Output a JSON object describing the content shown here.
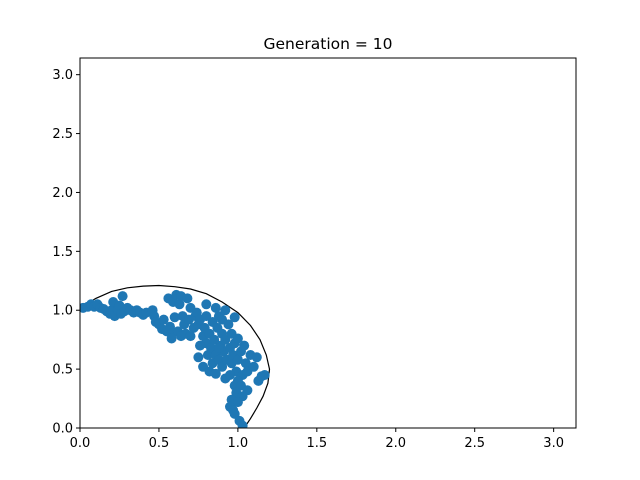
{
  "chart_data": {
    "type": "scatter",
    "title": "Generation = 10",
    "xlabel": "",
    "ylabel": "",
    "xlim": [
      0,
      3.1416
    ],
    "ylim": [
      0,
      3.1416
    ],
    "xticks": [
      0.0,
      0.5,
      1.0,
      1.5,
      2.0,
      2.5,
      3.0
    ],
    "yticks": [
      0.0,
      0.5,
      1.0,
      1.5,
      2.0,
      2.5,
      3.0
    ],
    "xtick_labels": [
      "0.0",
      "0.5",
      "1.0",
      "1.5",
      "2.0",
      "2.5",
      "3.0"
    ],
    "ytick_labels": [
      "0.0",
      "0.5",
      "1.0",
      "1.5",
      "2.0",
      "2.5",
      "3.0"
    ],
    "grid": false,
    "colors": {
      "points": "#1f77b4",
      "boundary": "#000000"
    },
    "boundary": {
      "type": "curve",
      "points": [
        [
          0.0,
          1.0
        ],
        [
          0.05,
          1.06
        ],
        [
          0.1,
          1.1
        ],
        [
          0.2,
          1.16
        ],
        [
          0.3,
          1.19
        ],
        [
          0.4,
          1.205
        ],
        [
          0.5,
          1.21
        ],
        [
          0.6,
          1.2
        ],
        [
          0.7,
          1.18
        ],
        [
          0.8,
          1.14
        ],
        [
          0.9,
          1.07
        ],
        [
          1.0,
          0.98
        ],
        [
          1.08,
          0.87
        ],
        [
          1.14,
          0.75
        ],
        [
          1.18,
          0.62
        ],
        [
          1.2,
          0.5
        ],
        [
          1.19,
          0.38
        ],
        [
          1.16,
          0.27
        ],
        [
          1.12,
          0.17
        ],
        [
          1.08,
          0.08
        ],
        [
          1.04,
          0.0
        ]
      ]
    },
    "points": [
      [
        0.02,
        1.02
      ],
      [
        0.05,
        1.03
      ],
      [
        0.07,
        1.05
      ],
      [
        0.09,
        1.03
      ],
      [
        0.11,
        1.05
      ],
      [
        0.13,
        1.02
      ],
      [
        0.15,
        1.01
      ],
      [
        0.17,
        0.99
      ],
      [
        0.19,
        0.97
      ],
      [
        0.2,
        1.0
      ],
      [
        0.21,
        1.07
      ],
      [
        0.22,
        0.95
      ],
      [
        0.24,
        1.0
      ],
      [
        0.25,
        1.04
      ],
      [
        0.26,
        0.97
      ],
      [
        0.28,
        0.99
      ],
      [
        0.3,
        1.02
      ],
      [
        0.27,
        1.12
      ],
      [
        0.32,
        1.0
      ],
      [
        0.34,
        0.98
      ],
      [
        0.36,
        1.0
      ],
      [
        0.38,
        0.98
      ],
      [
        0.4,
        0.96
      ],
      [
        0.42,
        0.98
      ],
      [
        0.46,
        1.0
      ],
      [
        0.47,
        0.95
      ],
      [
        0.48,
        0.9
      ],
      [
        0.5,
        0.88
      ],
      [
        0.52,
        0.84
      ],
      [
        0.53,
        0.92
      ],
      [
        0.55,
        0.82
      ],
      [
        0.56,
        1.1
      ],
      [
        0.57,
        0.86
      ],
      [
        0.58,
        0.8
      ],
      [
        0.59,
        1.07
      ],
      [
        0.6,
        0.94
      ],
      [
        0.61,
        1.13
      ],
      [
        0.62,
        0.82
      ],
      [
        0.63,
        1.05
      ],
      [
        0.64,
        1.12
      ],
      [
        0.65,
        0.95
      ],
      [
        0.66,
        0.88
      ],
      [
        0.67,
        0.8
      ],
      [
        0.68,
        1.1
      ],
      [
        0.69,
        0.92
      ],
      [
        0.7,
        1.02
      ],
      [
        0.72,
        0.85
      ],
      [
        0.73,
        0.95
      ],
      [
        0.74,
        0.98
      ],
      [
        0.75,
        0.88
      ],
      [
        0.76,
        0.92
      ],
      [
        0.78,
        0.78
      ],
      [
        0.79,
        0.85
      ],
      [
        0.8,
        0.72
      ],
      [
        0.8,
        0.95
      ],
      [
        0.81,
        0.62
      ],
      [
        0.82,
        0.8
      ],
      [
        0.83,
        0.68
      ],
      [
        0.84,
        0.9
      ],
      [
        0.84,
        0.55
      ],
      [
        0.85,
        0.75
      ],
      [
        0.86,
        0.62
      ],
      [
        0.87,
        0.85
      ],
      [
        0.88,
        0.58
      ],
      [
        0.88,
        0.95
      ],
      [
        0.89,
        0.7
      ],
      [
        0.9,
        0.8
      ],
      [
        0.9,
        0.52
      ],
      [
        0.91,
        0.65
      ],
      [
        0.92,
        0.75
      ],
      [
        0.93,
        0.58
      ],
      [
        0.94,
        0.88
      ],
      [
        0.95,
        0.68
      ],
      [
        0.96,
        0.55
      ],
      [
        0.97,
        0.62
      ],
      [
        0.98,
        0.72
      ],
      [
        0.99,
        0.48
      ],
      [
        1.0,
        0.58
      ],
      [
        1.02,
        0.65
      ],
      [
        1.03,
        0.45
      ],
      [
        1.04,
        0.7
      ],
      [
        1.05,
        0.55
      ],
      [
        1.06,
        0.48
      ],
      [
        1.08,
        0.62
      ],
      [
        1.1,
        0.52
      ],
      [
        1.12,
        0.6
      ],
      [
        1.13,
        0.4
      ],
      [
        1.15,
        0.44
      ],
      [
        1.17,
        0.45
      ],
      [
        1.0,
        0.4
      ],
      [
        0.98,
        0.36
      ],
      [
        1.02,
        0.36
      ],
      [
        1.06,
        0.32
      ],
      [
        0.99,
        0.3
      ],
      [
        1.03,
        0.27
      ],
      [
        0.96,
        0.24
      ],
      [
        1.0,
        0.22
      ],
      [
        0.95,
        0.18
      ],
      [
        0.97,
        0.15
      ],
      [
        0.98,
        0.12
      ],
      [
        1.01,
        0.06
      ],
      [
        1.03,
        0.02
      ],
      [
        0.75,
        0.6
      ],
      [
        0.78,
        0.52
      ],
      [
        0.82,
        0.48
      ],
      [
        0.86,
        0.46
      ],
      [
        0.92,
        0.42
      ],
      [
        0.95,
        0.45
      ],
      [
        0.88,
        0.68
      ],
      [
        0.9,
        0.92
      ],
      [
        0.96,
        0.8
      ],
      [
        1.0,
        0.76
      ],
      [
        0.86,
        1.02
      ],
      [
        0.92,
        1.0
      ],
      [
        0.98,
        0.94
      ],
      [
        0.7,
        0.78
      ],
      [
        0.64,
        0.78
      ],
      [
        0.58,
        0.76
      ],
      [
        0.76,
        0.7
      ],
      [
        0.8,
        1.05
      ]
    ]
  }
}
